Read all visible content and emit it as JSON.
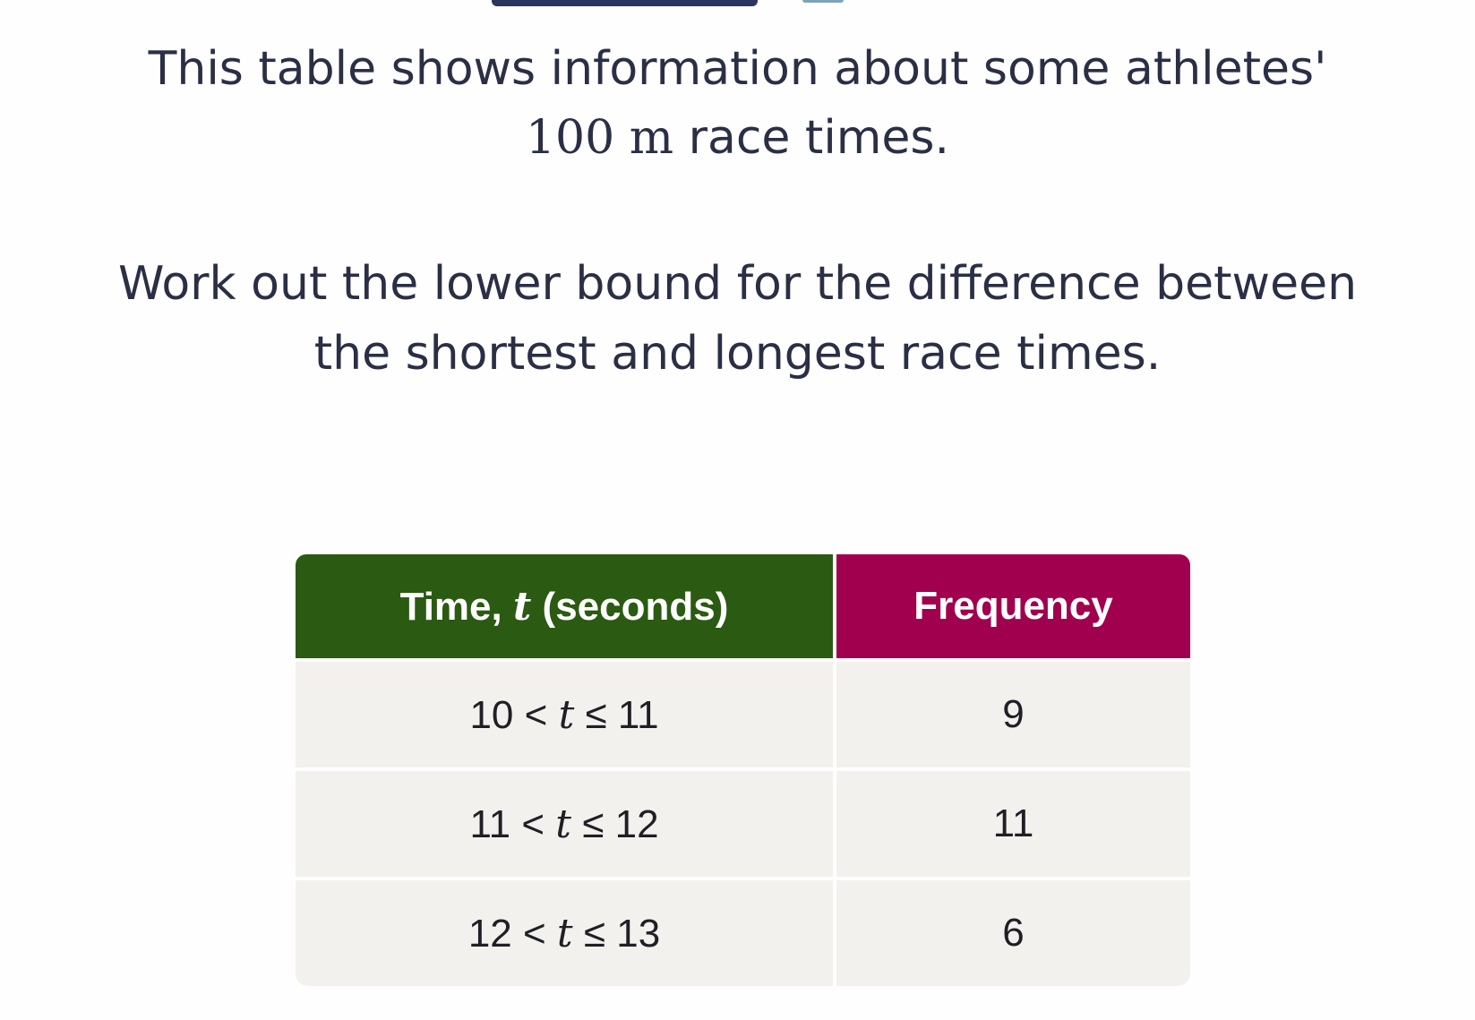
{
  "intro": {
    "line1": "This table shows information about some athletes'",
    "line2_math": "100 m",
    "line2_text": " race times."
  },
  "question": {
    "line1": "Work out the lower bound for the difference between",
    "line2": "the shortest and longest race times."
  },
  "table": {
    "header_time_prefix": "Time, ",
    "header_time_var": "t",
    "header_time_suffix": " (seconds)",
    "header_frequency": "Frequency",
    "rows": [
      {
        "lower": "10",
        "var": "t",
        "upper": "11",
        "frequency": "9"
      },
      {
        "lower": "11",
        "var": "t",
        "upper": "12",
        "frequency": "11"
      },
      {
        "lower": "12",
        "var": "t",
        "upper": "13",
        "frequency": "6"
      }
    ]
  },
  "colors": {
    "header_time_bg": "#2b5a12",
    "header_frequency_bg": "#a0004e",
    "cell_bg": "#f3f1ed",
    "text": "#2a2f45"
  }
}
